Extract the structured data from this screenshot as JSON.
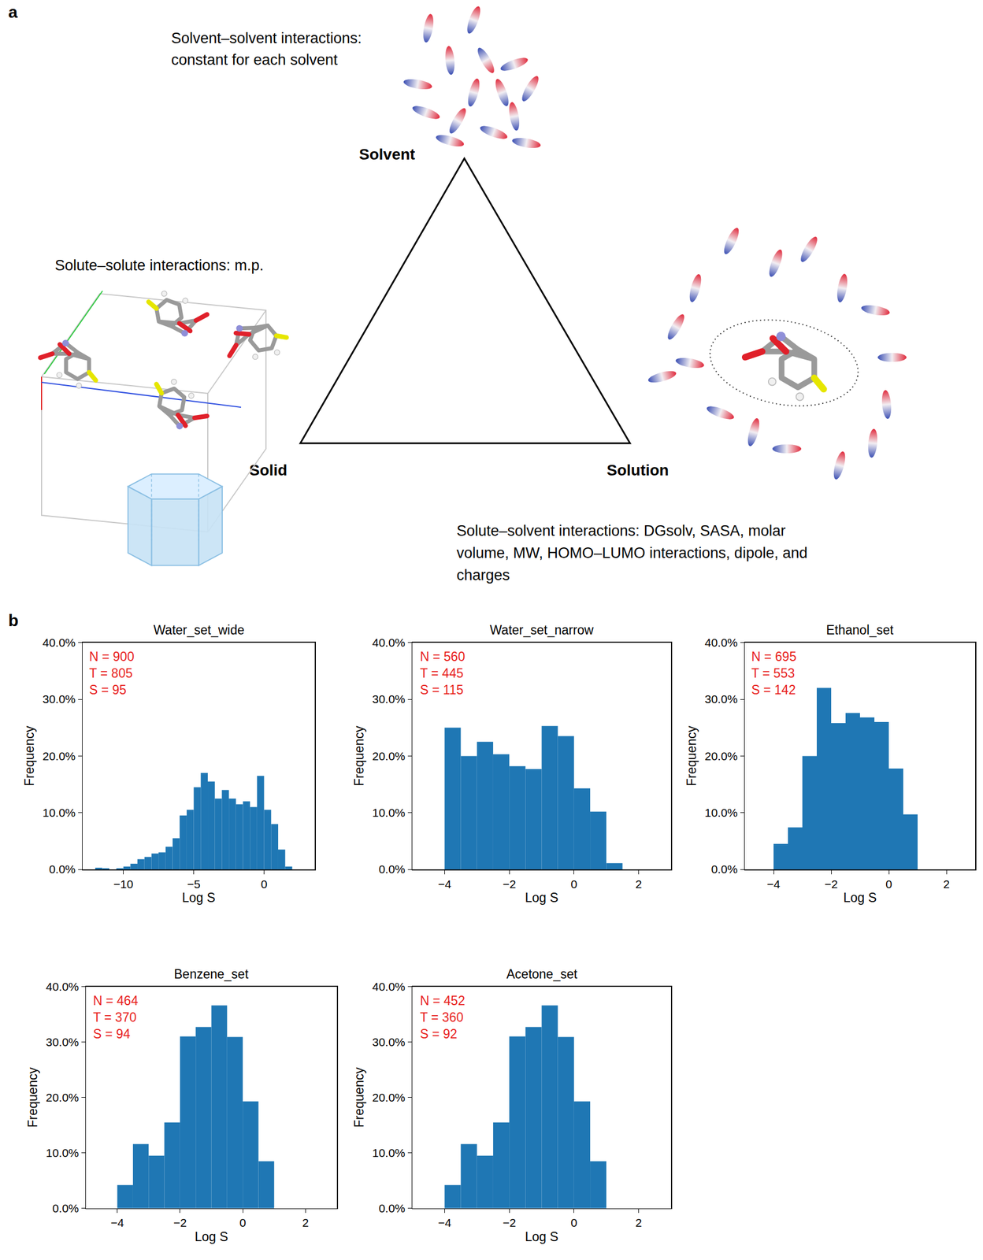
{
  "panel_a": {
    "label": "a",
    "solvent_note": [
      "Solvent–solvent interactions:",
      "constant for each solvent"
    ],
    "solvent": "Solvent",
    "solid_note": [
      "Solute–solute interactions: m.p."
    ],
    "solid": "Solid",
    "solution": "Solution",
    "solution_note": [
      "Solute–solvent interactions: DGsolv, SASA, molar",
      "volume, MW, HOMO–LUMO interactions, dipole, and",
      "charges"
    ]
  },
  "panel_b": {
    "label": "b"
  },
  "chart_data": [
    {
      "type": "histogram",
      "title": "Water_set_wide",
      "bins": [
        -12,
        -11.5,
        -11,
        -10.5,
        -10,
        -9.5,
        -9,
        -8.5,
        -8,
        -7.5,
        -7,
        -6.5,
        -6,
        -5.5,
        -5,
        -4.5,
        -4,
        -3.5,
        -3,
        -2.5,
        -2,
        -1.5,
        -1,
        -0.5,
        0,
        0.5,
        1,
        1.5,
        2
      ],
      "values": [
        0.3,
        0.2,
        0,
        0.2,
        0.5,
        1.0,
        1.8,
        2.2,
        2.8,
        3.0,
        4.0,
        5.5,
        9.5,
        10.5,
        14.5,
        17.0,
        15.5,
        12.5,
        14.0,
        12.5,
        11.5,
        12.0,
        11.0,
        16.5,
        10.5,
        8.0,
        3.5,
        0.5
      ],
      "color": "#1f77b4",
      "xlabel": "Log S",
      "ylabel": "Frequency",
      "xlim": [
        -12.9,
        3.6
      ],
      "ylim": [
        0,
        40
      ],
      "xticks": [
        {
          "value": -10,
          "label": "−10"
        },
        {
          "value": -5,
          "label": "−5"
        },
        0
      ],
      "yticks": [
        {
          "value": 0,
          "label": "0.0%"
        },
        {
          "value": 10,
          "label": "10.0%"
        },
        {
          "value": 20,
          "label": "20.0%"
        },
        {
          "value": 30,
          "label": "30.0%"
        },
        {
          "value": 40,
          "label": "40.0%"
        }
      ],
      "grid": false,
      "annotations": [
        "N = 900",
        "T = 805",
        "S = 95"
      ]
    },
    {
      "type": "histogram",
      "title": "Water_set_narrow",
      "bins": [
        -4,
        -3.5,
        -3,
        -2.5,
        -2,
        -1.5,
        -1,
        -0.5,
        0,
        0.5,
        1,
        1.5
      ],
      "values": [
        25.0,
        20.0,
        22.5,
        20.3,
        18.2,
        17.7,
        25.3,
        23.5,
        14.3,
        10.2,
        1.1
      ],
      "color": "#1f77b4",
      "xlabel": "Log S",
      "ylabel": "Frequency",
      "xlim": [
        -5,
        3
      ],
      "ylim": [
        0,
        40
      ],
      "xticks": [
        {
          "value": -4,
          "label": "−4"
        },
        {
          "value": -2,
          "label": "−2"
        },
        0,
        2
      ],
      "yticks": [
        {
          "value": 0,
          "label": "0.0%"
        },
        {
          "value": 10,
          "label": "10.0%"
        },
        {
          "value": 20,
          "label": "20.0%"
        },
        {
          "value": 30,
          "label": "30.0%"
        },
        {
          "value": 40,
          "label": "40.0%"
        }
      ],
      "grid": false,
      "annotations": [
        "N = 560",
        "T = 445",
        "S = 115"
      ]
    },
    {
      "type": "histogram",
      "title": "Ethanol_set",
      "bins": [
        -4,
        -3.5,
        -3,
        -2.5,
        -2,
        -1.5,
        -1,
        -0.5,
        0,
        0.5,
        1
      ],
      "values": [
        4.5,
        7.4,
        20.0,
        32.0,
        25.8,
        27.6,
        26.8,
        26.0,
        17.8,
        9.7
      ],
      "color": "#1f77b4",
      "xlabel": "Log S",
      "ylabel": "Frequency",
      "xlim": [
        -5,
        3
      ],
      "ylim": [
        0,
        40
      ],
      "xticks": [
        {
          "value": -4,
          "label": "−4"
        },
        {
          "value": -2,
          "label": "−2"
        },
        0,
        2
      ],
      "yticks": [
        {
          "value": 0,
          "label": "0.0%"
        },
        {
          "value": 10,
          "label": "10.0%"
        },
        {
          "value": 20,
          "label": "20.0%"
        },
        {
          "value": 30,
          "label": "30.0%"
        },
        {
          "value": 40,
          "label": "40.0%"
        }
      ],
      "grid": false,
      "annotations": [
        "N = 695",
        "T = 553",
        "S = 142"
      ]
    },
    {
      "type": "histogram",
      "title": "Benzene_set",
      "bins": [
        -4,
        -3.5,
        -3,
        -2.5,
        -2,
        -1.5,
        -1,
        -0.5,
        0,
        0.5,
        1
      ],
      "values": [
        4.2,
        11.6,
        9.5,
        15.5,
        31.0,
        32.7,
        36.6,
        30.9,
        19.3,
        8.5
      ],
      "color": "#1f77b4",
      "xlabel": "Log S",
      "ylabel": "Frequency",
      "xlim": [
        -5,
        3
      ],
      "ylim": [
        0,
        40
      ],
      "xticks": [
        {
          "value": -4,
          "label": "−4"
        },
        {
          "value": -2,
          "label": "−2"
        },
        0,
        2
      ],
      "yticks": [
        {
          "value": 0,
          "label": "0.0%"
        },
        {
          "value": 10,
          "label": "10.0%"
        },
        {
          "value": 20,
          "label": "20.0%"
        },
        {
          "value": 30,
          "label": "30.0%"
        },
        {
          "value": 40,
          "label": "40.0%"
        }
      ],
      "grid": false,
      "annotations": [
        "N = 464",
        "T = 370",
        "S = 94"
      ]
    },
    {
      "type": "histogram",
      "title": "Acetone_set",
      "bins": [
        -4,
        -3.5,
        -3,
        -2.5,
        -2,
        -1.5,
        -1,
        -0.5,
        0,
        0.5,
        1
      ],
      "values": [
        4.2,
        11.6,
        9.5,
        15.5,
        31.0,
        32.7,
        36.6,
        30.9,
        19.3,
        8.5
      ],
      "color": "#1f77b4",
      "xlabel": "Log S",
      "ylabel": "Frequency",
      "xlim": [
        -5,
        3
      ],
      "ylim": [
        0,
        40
      ],
      "xticks": [
        {
          "value": -4,
          "label": "−4"
        },
        {
          "value": -2,
          "label": "−2"
        },
        0,
        2
      ],
      "yticks": [
        {
          "value": 0,
          "label": "0.0%"
        },
        {
          "value": 10,
          "label": "10.0%"
        },
        {
          "value": 20,
          "label": "20.0%"
        },
        {
          "value": 30,
          "label": "30.0%"
        },
        {
          "value": 40,
          "label": "40.0%"
        }
      ],
      "grid": false,
      "annotations": [
        "N = 452",
        "T = 360",
        "S = 92"
      ]
    }
  ]
}
